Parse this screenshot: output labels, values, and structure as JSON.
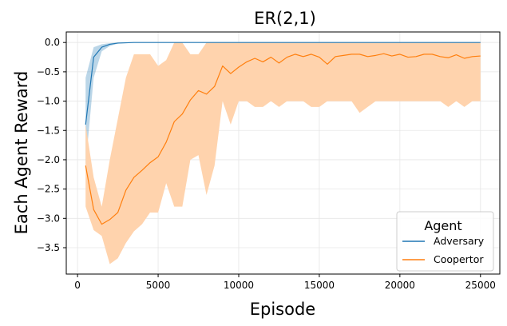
{
  "chart_data": {
    "type": "line",
    "title": "ER(2,1)",
    "xlabel": "Episode",
    "ylabel": "Each Agent Reward",
    "xlim": [
      -700,
      26200
    ],
    "ylim": [
      -3.95,
      0.18
    ],
    "xticks": [
      0,
      5000,
      10000,
      15000,
      20000,
      25000
    ],
    "xtick_labels": [
      "0",
      "5000",
      "10000",
      "15000",
      "20000",
      "25000"
    ],
    "yticks": [
      0.0,
      -0.5,
      -1.0,
      -1.5,
      -2.0,
      -2.5,
      -3.0,
      -3.5
    ],
    "ytick_labels": [
      "0.0",
      "−0.5",
      "−1.0",
      "−1.5",
      "−2.0",
      "−2.5",
      "−3.0",
      "−3.5"
    ],
    "grid": true,
    "legend": {
      "title": "Agent",
      "position": "lower-right"
    },
    "series": [
      {
        "name": "Adversary",
        "color": "#1f77b4",
        "x": [
          500,
          1000,
          1500,
          2000,
          2500,
          3000,
          3500,
          4000,
          5000,
          6000,
          8000,
          10000,
          15000,
          20000,
          25000
        ],
        "y": [
          -1.4,
          -0.25,
          -0.08,
          -0.03,
          -0.01,
          -0.005,
          0,
          0,
          0,
          0,
          0,
          0,
          0,
          0,
          0
        ],
        "lower": [
          -2.1,
          -0.6,
          -0.15,
          -0.06,
          -0.02,
          -0.01,
          0,
          0,
          0,
          0,
          0,
          0,
          0,
          0,
          0
        ],
        "upper": [
          -0.6,
          -0.08,
          -0.03,
          -0.01,
          0,
          0,
          0,
          0,
          0,
          0,
          0,
          0,
          0,
          0,
          0
        ]
      },
      {
        "name": "Coopertor",
        "color": "#ff7f0e",
        "band_color": "#ffd3ad",
        "x": [
          500,
          1000,
          1500,
          2000,
          2500,
          3000,
          3500,
          4000,
          4500,
          5000,
          5500,
          6000,
          6500,
          7000,
          7500,
          8000,
          8500,
          9000,
          9500,
          10000,
          10500,
          11000,
          11500,
          12000,
          12500,
          13000,
          13500,
          14000,
          14500,
          15000,
          15500,
          16000,
          16500,
          17000,
          17500,
          18000,
          18500,
          19000,
          19500,
          20000,
          20500,
          21000,
          21500,
          22000,
          22500,
          23000,
          23500,
          24000,
          24500,
          25000
        ],
        "y": [
          -2.1,
          -2.85,
          -3.1,
          -3.02,
          -2.9,
          -2.52,
          -2.3,
          -2.18,
          -2.05,
          -1.95,
          -1.7,
          -1.35,
          -1.22,
          -0.98,
          -0.82,
          -0.88,
          -0.75,
          -0.4,
          -0.53,
          -0.42,
          -0.33,
          -0.27,
          -0.33,
          -0.25,
          -0.35,
          -0.25,
          -0.2,
          -0.24,
          -0.2,
          -0.25,
          -0.37,
          -0.24,
          -0.22,
          -0.2,
          -0.2,
          -0.24,
          -0.22,
          -0.19,
          -0.23,
          -0.2,
          -0.25,
          -0.24,
          -0.2,
          -0.2,
          -0.24,
          -0.26,
          -0.21,
          -0.27,
          -0.24,
          -0.23
        ],
        "lower": [
          -2.8,
          -3.2,
          -3.3,
          -3.78,
          -3.68,
          -3.42,
          -3.22,
          -3.1,
          -2.9,
          -2.9,
          -2.4,
          -2.8,
          -2.8,
          -2.0,
          -1.92,
          -2.6,
          -2.1,
          -1.0,
          -1.4,
          -1.0,
          -1.0,
          -1.1,
          -1.1,
          -1.0,
          -1.1,
          -1.0,
          -1.0,
          -1.0,
          -1.1,
          -1.1,
          -1.0,
          -1.0,
          -1.0,
          -1.0,
          -1.2,
          -1.1,
          -1.0,
          -1.0,
          -1.0,
          -1.0,
          -1.0,
          -1.0,
          -1.0,
          -1.0,
          -1.0,
          -1.1,
          -1.0,
          -1.1,
          -1.0,
          -1.0
        ],
        "upper": [
          -1.4,
          -2.3,
          -2.8,
          -2.0,
          -1.3,
          -0.6,
          -0.2,
          -0.2,
          -0.2,
          -0.4,
          -0.3,
          0.0,
          0.0,
          -0.2,
          -0.2,
          0.0,
          0.0,
          0.0,
          0.0,
          0.0,
          0.0,
          0.0,
          0.0,
          0.0,
          0.0,
          0.0,
          0.0,
          0.0,
          0.0,
          0.0,
          0.0,
          0.0,
          0.0,
          0.0,
          0.0,
          0.0,
          0.0,
          0.0,
          0.0,
          0.0,
          0.0,
          0.0,
          0.0,
          0.0,
          0.0,
          0.0,
          0.0,
          0.0,
          0.0,
          0.0
        ]
      }
    ]
  }
}
